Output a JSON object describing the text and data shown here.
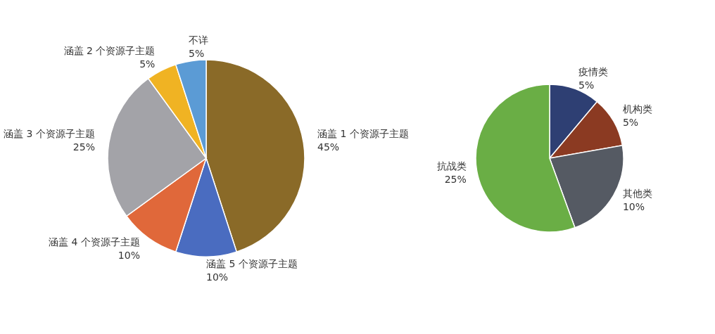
{
  "chart_data": [
    {
      "type": "pie",
      "categories": [
        "涵盖 1 个资源子主题",
        "涵盖 5 个资源子主题",
        "涵盖 4 个资源子主题",
        "涵盖 3 个资源子主题",
        "涵盖 2 个资源子主题",
        "不详"
      ],
      "values": [
        45,
        10,
        10,
        25,
        5,
        5
      ],
      "colors": [
        "#8a6a28",
        "#4a6cc0",
        "#e0683a",
        "#a3a3a8",
        "#f0b323",
        "#5b9bd5"
      ],
      "value_labels": [
        "45%",
        "10%",
        "10%",
        "25%",
        "5%",
        "5%"
      ],
      "legend": false
    },
    {
      "type": "pie",
      "categories": [
        "疫情类",
        "机构类",
        "其他类",
        "抗战类"
      ],
      "values": [
        5,
        5,
        10,
        25
      ],
      "colors": [
        "#2e3f73",
        "#8b3a22",
        "#555a63",
        "#6aae45"
      ],
      "value_labels": [
        "5%",
        "5%",
        "10%",
        "25%"
      ],
      "legend": false
    }
  ]
}
